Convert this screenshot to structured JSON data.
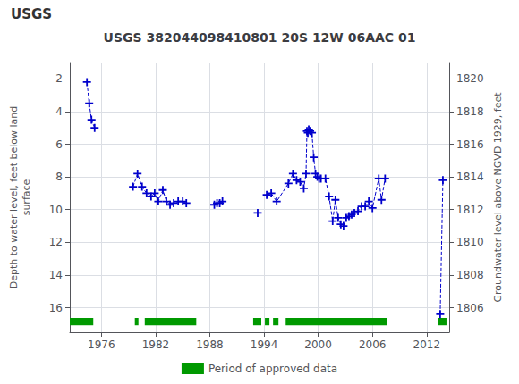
{
  "chart_data": {
    "type": "line",
    "title": "USGS 382044098410801 20S 12W 06AAC 01",
    "annotations": [
      "USGS"
    ],
    "ylabel": "Depth to water level, feet below land\nsurface",
    "y2label": "Groundwater level above NGVD 1929, feet",
    "xlim": [
      1972.5,
      2014.5
    ],
    "xticks": [
      1976,
      1982,
      1988,
      1994,
      2000,
      2006,
      2012
    ],
    "ylim": [
      17.5,
      1.0
    ],
    "yticks": [
      2,
      4,
      6,
      8,
      10,
      12,
      14,
      16
    ],
    "y2lim": [
      1804.5,
      1821.0
    ],
    "y2ticks": [
      1820,
      1818,
      1816,
      1814,
      1812,
      1810,
      1808,
      1806
    ],
    "grid": true,
    "legend": "bottom",
    "series": [
      {
        "type": "line",
        "color": "#0000cc",
        "marker": "+",
        "line_style": "dashed",
        "x": [
          1974.4,
          1974.65,
          1974.9,
          1975.25,
          null,
          1979.5,
          1980.0,
          1980.5,
          1981.0,
          1981.5,
          1981.9,
          1982.3,
          1982.8,
          1983.2,
          1983.6,
          1984.0,
          1984.5,
          1985.0,
          1985.4,
          null,
          1988.5,
          1988.8,
          1989.1,
          1989.4,
          null,
          1993.3,
          null,
          1994.3,
          1994.8,
          1995.4,
          1996.7,
          1997.2,
          1997.6,
          1998.0,
          1998.4,
          1998.65,
          1998.75,
          1998.85,
          1998.95,
          1999.1,
          1999.3,
          1999.5,
          1999.7,
          1999.9,
          2000.1,
          2000.3,
          2000.8,
          2001.2,
          2001.6,
          2001.9,
          2002.2,
          2002.5,
          2002.8,
          2003.1,
          2003.4,
          2003.7,
          2004.0,
          2004.4,
          2004.8,
          2005.2,
          2005.6,
          2006.0,
          2006.7,
          2007.0,
          2007.4,
          null,
          2013.5,
          2013.8
        ],
        "values": [
          2.2,
          3.5,
          4.5,
          5.0,
          null,
          8.6,
          7.8,
          8.6,
          9.0,
          9.2,
          9.0,
          9.5,
          8.8,
          9.5,
          9.7,
          9.6,
          9.5,
          9.5,
          9.6,
          null,
          9.7,
          9.6,
          9.6,
          9.5,
          null,
          10.2,
          null,
          9.1,
          9.0,
          9.5,
          8.4,
          7.8,
          8.2,
          8.3,
          8.7,
          7.8,
          5.2,
          5.3,
          5.1,
          5.2,
          5.3,
          6.8,
          7.8,
          8.0,
          8.1,
          8.1,
          8.1,
          9.2,
          10.7,
          9.4,
          10.5,
          10.9,
          11.0,
          10.5,
          10.4,
          10.3,
          10.2,
          10.1,
          9.8,
          9.8,
          9.5,
          9.9,
          8.1,
          9.4,
          8.1,
          null,
          16.4,
          8.2
        ]
      },
      {
        "type": "bar",
        "orientation": "horizontal",
        "name": "Period of approved data",
        "color": "#009900",
        "y": 16.85,
        "height": 0.45,
        "ranges": [
          [
            1972.5,
            1975.1
          ],
          [
            1979.7,
            1980.1
          ],
          [
            1980.8,
            1986.5
          ],
          [
            1992.8,
            1993.7
          ],
          [
            1994.1,
            1994.6
          ],
          [
            1995.0,
            1995.6
          ],
          [
            1996.4,
            2007.6
          ],
          [
            2013.3,
            2014.2
          ]
        ]
      }
    ]
  }
}
